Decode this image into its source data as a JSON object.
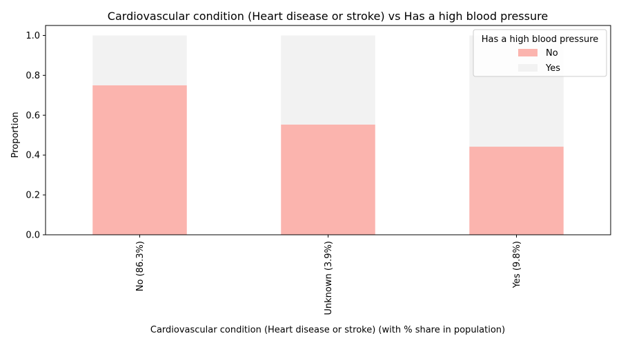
{
  "chart_data": {
    "type": "bar",
    "stacked": true,
    "title": "Cardiovascular condition (Heart disease or stroke) vs Has a high blood pressure",
    "xlabel": "Cardiovascular condition (Heart disease or stroke) (with % share in population)",
    "ylabel": "Proportion",
    "categories": [
      "No (86.3%)",
      "Unknown (3.9%)",
      "Yes (9.8%)"
    ],
    "series": [
      {
        "name": "No",
        "color": "#fbb4ae",
        "values": [
          0.75,
          0.553,
          0.442
        ]
      },
      {
        "name": "Yes",
        "color": "#f2f2f2",
        "values": [
          0.25,
          0.447,
          0.558
        ]
      }
    ],
    "ylim": [
      0,
      1.05
    ],
    "yticks": [
      0.0,
      0.2,
      0.4,
      0.6,
      0.8,
      1.0
    ],
    "ytick_labels": [
      "0.0",
      "0.2",
      "0.4",
      "0.6",
      "0.8",
      "1.0"
    ],
    "legend": {
      "title": "Has a high blood pressure",
      "placement": "top-right"
    },
    "grid": false
  }
}
